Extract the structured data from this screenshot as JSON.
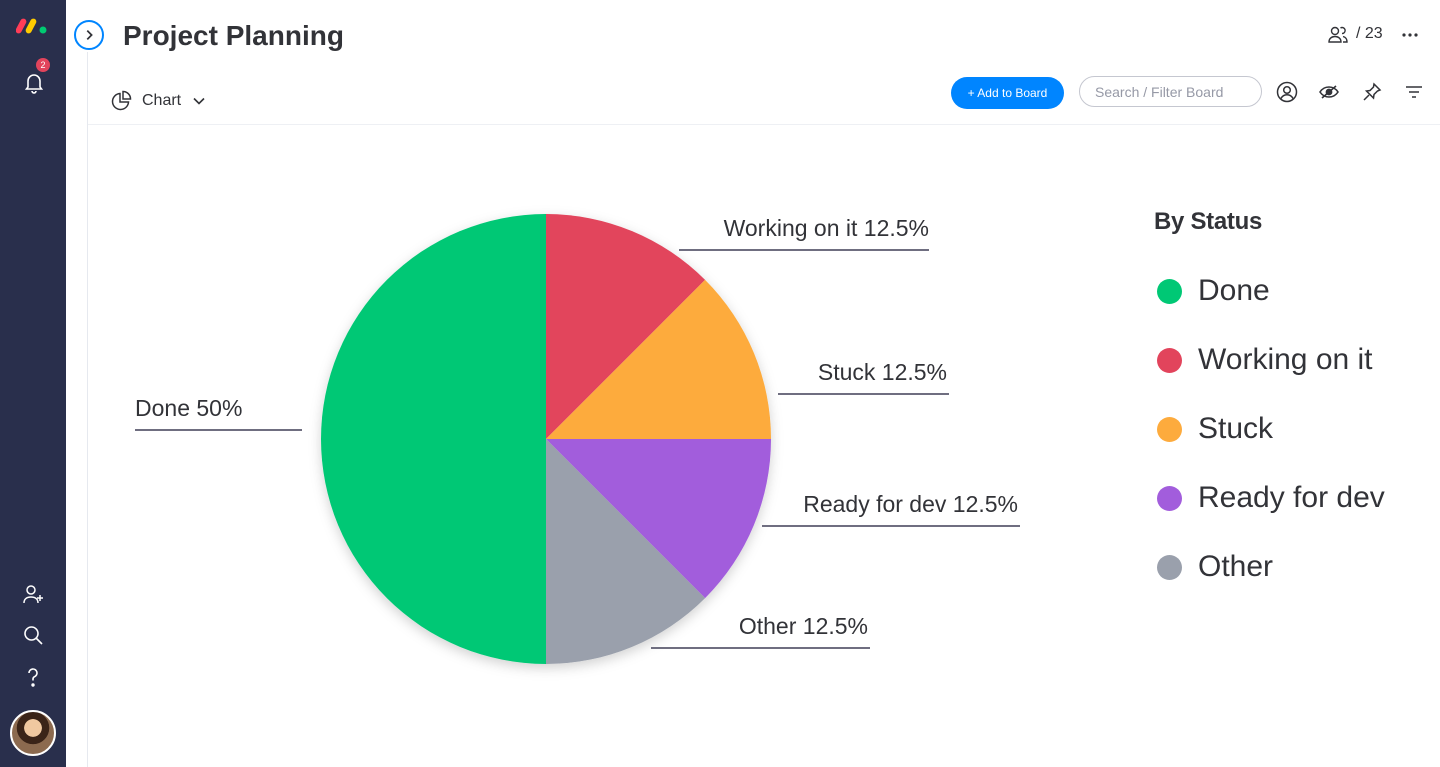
{
  "board": {
    "title": "Project Planning",
    "members_count": "/ 23",
    "notifications": "2"
  },
  "view": {
    "label": "Chart"
  },
  "toolbar": {
    "add_label": "+ Add to Board",
    "search_placeholder": "Search / Filter Board"
  },
  "colors": {
    "sidebar": "#292f4c",
    "accent": "#0085ff",
    "Done": "#00c875",
    "Working on it": "#e2445c",
    "Stuck": "#fdab3d",
    "Ready for dev": "#a25ddc",
    "Other": "#9aa0ac"
  },
  "chart_data": {
    "type": "pie",
    "legend_title": "By Status",
    "legend_position": "right",
    "categories": [
      "Done",
      "Working on it",
      "Stuck",
      "Ready for dev",
      "Other"
    ],
    "values": [
      50,
      12.5,
      12.5,
      12.5,
      12.5
    ],
    "labels": [
      "Done 50%",
      "Working on it 12.5%",
      "Stuck 12.5%",
      "Ready for dev 12.5%",
      "Other 12.5%"
    ],
    "colors": [
      "#00c875",
      "#e2445c",
      "#fdab3d",
      "#a25ddc",
      "#9aa0ac"
    ]
  },
  "icons": {
    "sidebar": [
      "monday-logo-icon",
      "bell-icon",
      "invite-member-icon",
      "search-icon",
      "help-icon",
      "user-avatar"
    ],
    "toolbar": [
      "person-filter-icon",
      "eye-icon",
      "pin-icon",
      "filter-icon"
    ]
  }
}
